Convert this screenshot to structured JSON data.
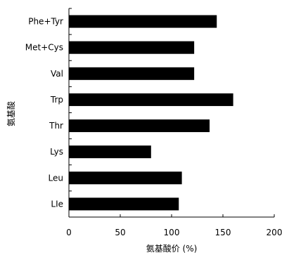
{
  "chart_data": {
    "type": "bar",
    "orientation": "horizontal",
    "categories": [
      "Phe+Tyr",
      "Met+Cys",
      "Val",
      "Trp",
      "Thr",
      "Lys",
      "Leu",
      "LIe"
    ],
    "values": [
      144,
      122,
      122,
      160,
      137,
      80,
      110,
      107
    ],
    "xlabel": "氨基酸价 (%)",
    "ylabel": "氨基酸",
    "xlim": [
      0,
      200
    ],
    "xticks": [
      "0",
      "50",
      "100",
      "150",
      "200"
    ],
    "grid": false,
    "legend": "none",
    "bar_color": "#000000"
  }
}
